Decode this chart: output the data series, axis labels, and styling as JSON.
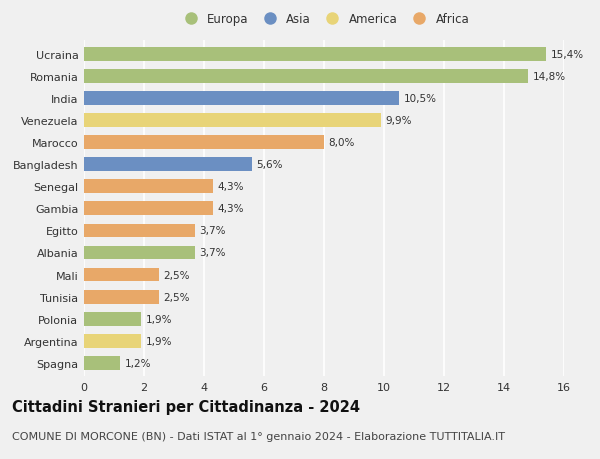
{
  "countries": [
    "Ucraina",
    "Romania",
    "India",
    "Venezuela",
    "Marocco",
    "Bangladesh",
    "Senegal",
    "Gambia",
    "Egitto",
    "Albania",
    "Mali",
    "Tunisia",
    "Polonia",
    "Argentina",
    "Spagna"
  ],
  "values": [
    15.4,
    14.8,
    10.5,
    9.9,
    8.0,
    5.6,
    4.3,
    4.3,
    3.7,
    3.7,
    2.5,
    2.5,
    1.9,
    1.9,
    1.2
  ],
  "labels": [
    "15,4%",
    "14,8%",
    "10,5%",
    "9,9%",
    "8,0%",
    "5,6%",
    "4,3%",
    "4,3%",
    "3,7%",
    "3,7%",
    "2,5%",
    "2,5%",
    "1,9%",
    "1,9%",
    "1,2%"
  ],
  "continents": [
    "Europa",
    "Europa",
    "Asia",
    "America",
    "Africa",
    "Asia",
    "Africa",
    "Africa",
    "Africa",
    "Europa",
    "Africa",
    "Africa",
    "Europa",
    "America",
    "Europa"
  ],
  "continent_colors": {
    "Europa": "#a8c07a",
    "Asia": "#6b8fc2",
    "America": "#e8d478",
    "Africa": "#e8a868"
  },
  "legend_order": [
    "Europa",
    "Asia",
    "America",
    "Africa"
  ],
  "title": "Cittadini Stranieri per Cittadinanza - 2024",
  "subtitle": "COMUNE DI MORCONE (BN) - Dati ISTAT al 1° gennaio 2024 - Elaborazione TUTTITALIA.IT",
  "xlim": [
    0,
    16
  ],
  "xticks": [
    0,
    2,
    4,
    6,
    8,
    10,
    12,
    14,
    16
  ],
  "background_color": "#f0f0f0",
  "grid_color": "#ffffff",
  "bar_height": 0.62,
  "title_fontsize": 10.5,
  "subtitle_fontsize": 8.0,
  "label_fontsize": 7.5,
  "tick_fontsize": 8.0,
  "legend_fontsize": 8.5
}
